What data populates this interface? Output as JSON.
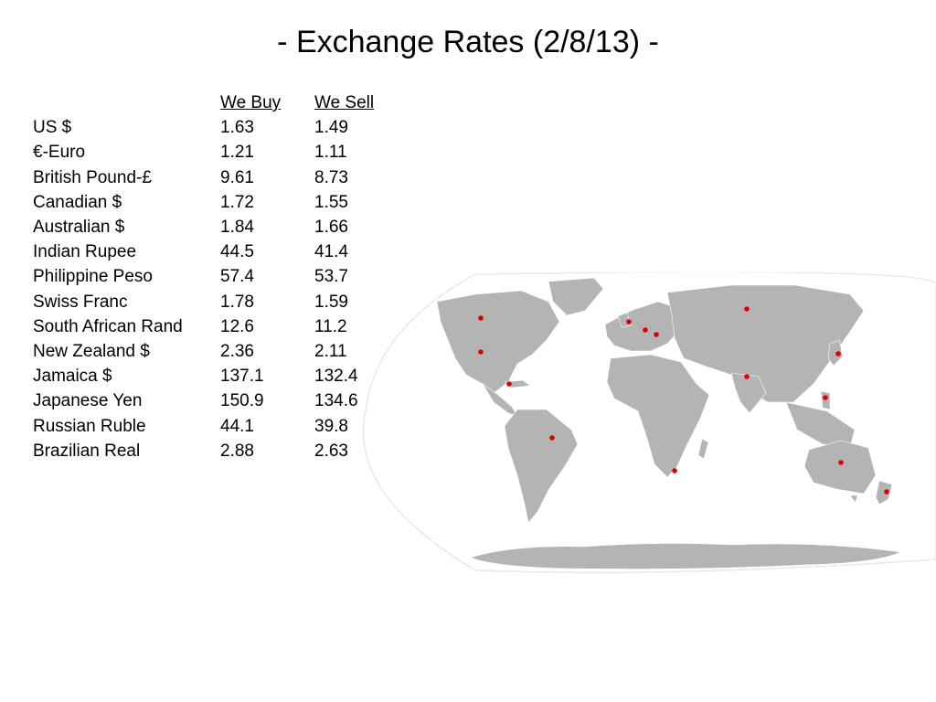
{
  "title": "- Exchange Rates (2/8/13) -",
  "table": {
    "headers": {
      "currency": "",
      "buy": "We Buy",
      "sell": "We Sell"
    },
    "rows": [
      {
        "currency": "US $",
        "buy": "1.63",
        "sell": "1.49"
      },
      {
        "currency": "€-Euro",
        "buy": "1.21",
        "sell": "1.11"
      },
      {
        "currency": "British Pound-£",
        "buy": "9.61",
        "sell": "8.73"
      },
      {
        "currency": "Canadian $",
        "buy": "1.72",
        "sell": "1.55"
      },
      {
        "currency": "Australian $",
        "buy": "1.84",
        "sell": "1.66"
      },
      {
        "currency": "Indian Rupee",
        "buy": "44.5",
        "sell": "41.4"
      },
      {
        "currency": "Philippine Peso",
        "buy": "57.4",
        "sell": "53.7"
      },
      {
        "currency": "Swiss Franc",
        "buy": "1.78",
        "sell": "1.59"
      },
      {
        "currency": "South African Rand",
        "buy": "12.6",
        "sell": "11.2"
      },
      {
        "currency": "New Zealand $",
        "buy": "2.36",
        "sell": "2.11"
      },
      {
        "currency": "Jamaica $",
        "buy": "137.1",
        "sell": "132.4"
      },
      {
        "currency": "Japanese Yen",
        "buy": "150.9",
        "sell": "134.6"
      },
      {
        "currency": "Russian Ruble",
        "buy": "44.1",
        "sell": "39.8"
      },
      {
        "currency": "Brazilian Real",
        "buy": "2.88",
        "sell": "2.63"
      }
    ]
  },
  "map": {
    "land_color": "#b4b4b4",
    "outline_color": "#e8e8e8",
    "marker_color": "#e00000",
    "icon": "world-map-icon"
  }
}
